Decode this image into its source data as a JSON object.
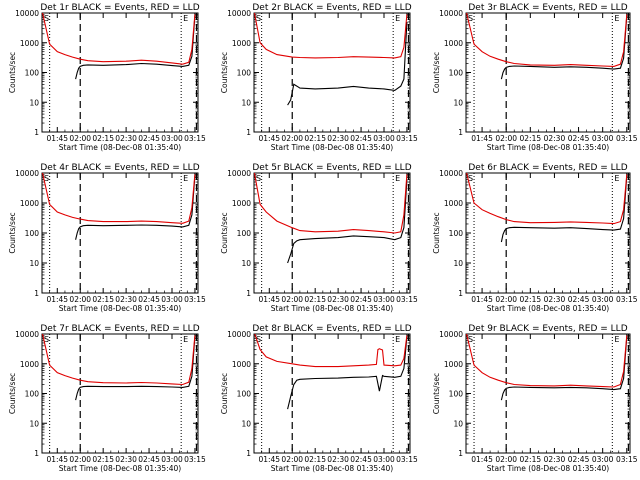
{
  "figure": {
    "time_ticks": [
      "01:45",
      "02:00",
      "02:15",
      "02:30",
      "02:45",
      "03:00",
      "03:15"
    ],
    "y_ticks": [
      "1",
      "10",
      "100",
      "1000",
      "10000"
    ],
    "ylabel": "Counts/sec",
    "corner_marks": [
      "S",
      "E"
    ],
    "series_colors": {
      "events": "#000000",
      "lld": "#e00000"
    }
  },
  "chart_data": [
    {
      "type": "line",
      "title": "Det 1r BLACK = Events, RED = LLD",
      "xlabel": "Start Time (08-Dec-08 01:35:40)",
      "x_unit": "minutes after 01:35:40",
      "xlim": [
        0,
        102
      ],
      "ylim": [
        1,
        10000
      ],
      "y_scale": "log",
      "vlines": {
        "dotted": [
          5,
          91
        ],
        "dashed": [
          25,
          101
        ]
      },
      "series": [
        {
          "key": "events",
          "x": [
            22,
            23,
            24,
            25,
            27,
            30,
            40,
            55,
            65,
            75,
            85,
            92,
            96,
            98,
            100
          ],
          "values": [
            60,
            100,
            140,
            160,
            175,
            180,
            175,
            185,
            200,
            190,
            170,
            160,
            175,
            350,
            8000
          ]
        },
        {
          "key": "lld",
          "x": [
            0,
            5,
            10,
            15,
            20,
            25,
            30,
            40,
            55,
            65,
            75,
            85,
            92,
            96,
            98,
            100
          ],
          "values": [
            12000,
            900,
            500,
            400,
            330,
            280,
            250,
            230,
            240,
            260,
            240,
            210,
            190,
            220,
            600,
            9000
          ]
        }
      ]
    },
    {
      "type": "line",
      "title": "Det 2r BLACK = Events, RED = LLD",
      "xlabel": "Start Time (08-Dec-08 01:35:40)",
      "x_unit": "minutes after 01:35:40",
      "xlim": [
        0,
        102
      ],
      "ylim": [
        1,
        10000
      ],
      "y_scale": "log",
      "vlines": {
        "dotted": [
          5,
          91
        ],
        "dashed": [
          25,
          101
        ]
      },
      "series": [
        {
          "key": "events",
          "x": [
            22,
            24,
            26,
            28,
            30,
            40,
            55,
            65,
            75,
            85,
            92,
            96,
            98,
            100
          ],
          "values": [
            8,
            12,
            40,
            35,
            30,
            28,
            30,
            34,
            30,
            28,
            25,
            35,
            60,
            5000
          ]
        },
        {
          "key": "lld",
          "x": [
            0,
            4,
            8,
            15,
            25,
            30,
            40,
            55,
            65,
            75,
            85,
            92,
            96,
            98,
            100
          ],
          "values": [
            12000,
            1000,
            600,
            400,
            330,
            320,
            310,
            320,
            340,
            330,
            320,
            310,
            340,
            700,
            9000
          ]
        }
      ]
    },
    {
      "type": "line",
      "title": "Det 3r BLACK = Events, RED = LLD",
      "xlabel": "Start Time (08-Dec-08 01:35:40)",
      "x_unit": "minutes after 01:35:40",
      "xlim": [
        0,
        102
      ],
      "ylim": [
        1,
        10000
      ],
      "y_scale": "log",
      "vlines": {
        "dotted": [
          5,
          91
        ],
        "dashed": [
          25,
          101
        ]
      },
      "series": [
        {
          "key": "events",
          "x": [
            22,
            23,
            24,
            25,
            27,
            30,
            40,
            55,
            65,
            75,
            85,
            92,
            96,
            98,
            100
          ],
          "values": [
            60,
            100,
            130,
            150,
            160,
            165,
            160,
            150,
            155,
            150,
            140,
            130,
            140,
            300,
            8000
          ]
        },
        {
          "key": "lld",
          "x": [
            0,
            5,
            10,
            15,
            20,
            25,
            30,
            40,
            55,
            65,
            75,
            85,
            92,
            96,
            98,
            100
          ],
          "values": [
            12000,
            900,
            500,
            350,
            280,
            230,
            200,
            180,
            175,
            185,
            175,
            165,
            160,
            190,
            500,
            9000
          ]
        }
      ]
    },
    {
      "type": "line",
      "title": "Det 4r BLACK = Events, RED = LLD",
      "xlabel": "Start Time (08-Dec-08 01:35:40)",
      "x_unit": "minutes after 01:35:40",
      "xlim": [
        0,
        102
      ],
      "ylim": [
        1,
        10000
      ],
      "y_scale": "log",
      "vlines": {
        "dotted": [
          5,
          91
        ],
        "dashed": [
          25,
          101
        ]
      },
      "series": [
        {
          "key": "events",
          "x": [
            22,
            23,
            24,
            25,
            27,
            30,
            40,
            55,
            65,
            75,
            85,
            92,
            96,
            98,
            100
          ],
          "values": [
            60,
            100,
            140,
            160,
            175,
            180,
            175,
            180,
            185,
            180,
            170,
            160,
            180,
            400,
            8000
          ]
        },
        {
          "key": "lld",
          "x": [
            0,
            5,
            10,
            15,
            20,
            25,
            30,
            40,
            55,
            65,
            75,
            85,
            92,
            96,
            98,
            100
          ],
          "values": [
            12000,
            900,
            500,
            400,
            330,
            290,
            260,
            240,
            240,
            250,
            240,
            220,
            210,
            250,
            700,
            9000
          ]
        }
      ]
    },
    {
      "type": "line",
      "title": "Det 5r BLACK = Events, RED = LLD",
      "xlabel": "Start Time (08-Dec-08 01:35:40)",
      "x_unit": "minutes after 01:35:40",
      "xlim": [
        0,
        102
      ],
      "ylim": [
        1,
        10000
      ],
      "y_scale": "log",
      "vlines": {
        "dotted": [
          5,
          91
        ],
        "dashed": [
          25,
          101
        ]
      },
      "series": [
        {
          "key": "events",
          "x": [
            22,
            24,
            26,
            28,
            30,
            40,
            55,
            65,
            75,
            85,
            92,
            96,
            98,
            100
          ],
          "values": [
            10,
            20,
            45,
            55,
            60,
            65,
            70,
            80,
            75,
            70,
            60,
            70,
            150,
            6000
          ]
        },
        {
          "key": "lld",
          "x": [
            0,
            4,
            8,
            15,
            25,
            30,
            40,
            55,
            65,
            75,
            85,
            92,
            96,
            98,
            100
          ],
          "values": [
            12000,
            900,
            500,
            250,
            150,
            120,
            110,
            115,
            130,
            120,
            110,
            100,
            110,
            400,
            9000
          ]
        }
      ]
    },
    {
      "type": "line",
      "title": "Det 6r BLACK = Events, RED = LLD",
      "xlabel": "Start Time (08-Dec-08 01:35:40)",
      "x_unit": "minutes after 01:35:40",
      "xlim": [
        0,
        102
      ],
      "ylim": [
        1,
        10000
      ],
      "y_scale": "log",
      "vlines": {
        "dotted": [
          5,
          91
        ],
        "dashed": [
          25,
          101
        ]
      },
      "series": [
        {
          "key": "events",
          "x": [
            22,
            23,
            24,
            25,
            27,
            30,
            40,
            55,
            65,
            75,
            85,
            92,
            96,
            98,
            100
          ],
          "values": [
            50,
            90,
            120,
            140,
            150,
            155,
            150,
            145,
            150,
            140,
            130,
            125,
            135,
            300,
            8000
          ]
        },
        {
          "key": "lld",
          "x": [
            0,
            5,
            10,
            15,
            20,
            25,
            30,
            40,
            55,
            65,
            75,
            85,
            92,
            96,
            98,
            100
          ],
          "values": [
            12000,
            1000,
            600,
            450,
            350,
            280,
            240,
            220,
            225,
            235,
            225,
            215,
            205,
            240,
            600,
            9000
          ]
        }
      ]
    },
    {
      "type": "line",
      "title": "Det 7r BLACK = Events, RED = LLD",
      "xlabel": "Start Time (08-Dec-08 01:35:40)",
      "x_unit": "minutes after 01:35:40",
      "xlim": [
        0,
        102
      ],
      "ylim": [
        1,
        10000
      ],
      "y_scale": "log",
      "vlines": {
        "dotted": [
          5,
          91
        ],
        "dashed": [
          25,
          101
        ]
      },
      "series": [
        {
          "key": "events",
          "x": [
            22,
            23,
            24,
            25,
            27,
            30,
            40,
            55,
            65,
            75,
            85,
            92,
            96,
            98,
            100
          ],
          "values": [
            60,
            100,
            140,
            160,
            170,
            175,
            170,
            170,
            175,
            170,
            165,
            160,
            175,
            380,
            8000
          ]
        },
        {
          "key": "lld",
          "x": [
            0,
            5,
            10,
            15,
            20,
            25,
            30,
            40,
            55,
            65,
            75,
            85,
            92,
            96,
            98,
            100
          ],
          "values": [
            12000,
            900,
            500,
            400,
            330,
            280,
            250,
            230,
            225,
            235,
            225,
            210,
            200,
            240,
            700,
            9000
          ]
        }
      ]
    },
    {
      "type": "line",
      "title": "Det 8r BLACK = Events, RED = LLD",
      "xlabel": "Start Time (08-Dec-08 01:35:40)",
      "x_unit": "minutes after 01:35:40",
      "xlim": [
        0,
        102
      ],
      "ylim": [
        1,
        10000
      ],
      "y_scale": "log",
      "vlines": {
        "dotted": [
          5,
          91
        ],
        "dashed": [
          25,
          101
        ]
      },
      "series": [
        {
          "key": "events",
          "x": [
            22,
            24,
            26,
            28,
            30,
            40,
            55,
            65,
            75,
            80,
            82,
            84,
            85,
            92,
            96,
            98,
            100
          ],
          "values": [
            30,
            80,
            200,
            280,
            300,
            320,
            330,
            350,
            360,
            380,
            120,
            400,
            380,
            350,
            380,
            700,
            8000
          ]
        },
        {
          "key": "lld",
          "x": [
            0,
            4,
            8,
            15,
            25,
            30,
            40,
            55,
            65,
            75,
            80,
            81,
            82,
            84,
            85,
            92,
            96,
            98,
            100
          ],
          "values": [
            12000,
            3000,
            1700,
            1200,
            1000,
            900,
            800,
            800,
            850,
            900,
            950,
            3000,
            3200,
            2900,
            900,
            850,
            900,
            1500,
            9000
          ]
        }
      ]
    },
    {
      "type": "line",
      "title": "Det 9r BLACK = Events, RED = LLD",
      "xlabel": "Start Time (08-Dec-08 01:35:40)",
      "x_unit": "minutes after 01:35:40",
      "xlim": [
        0,
        102
      ],
      "ylim": [
        1,
        10000
      ],
      "y_scale": "log",
      "vlines": {
        "dotted": [
          5,
          91
        ],
        "dashed": [
          25,
          101
        ]
      },
      "series": [
        {
          "key": "events",
          "x": [
            22,
            23,
            24,
            25,
            27,
            30,
            40,
            55,
            65,
            75,
            85,
            92,
            96,
            98,
            100
          ],
          "values": [
            60,
            100,
            130,
            150,
            160,
            165,
            160,
            155,
            160,
            155,
            145,
            135,
            145,
            320,
            8000
          ]
        },
        {
          "key": "lld",
          "x": [
            0,
            5,
            10,
            15,
            20,
            25,
            30,
            40,
            55,
            65,
            75,
            85,
            92,
            96,
            98,
            100
          ],
          "values": [
            12000,
            900,
            500,
            350,
            280,
            230,
            200,
            185,
            180,
            190,
            180,
            170,
            165,
            200,
            550,
            9000
          ]
        }
      ]
    }
  ]
}
